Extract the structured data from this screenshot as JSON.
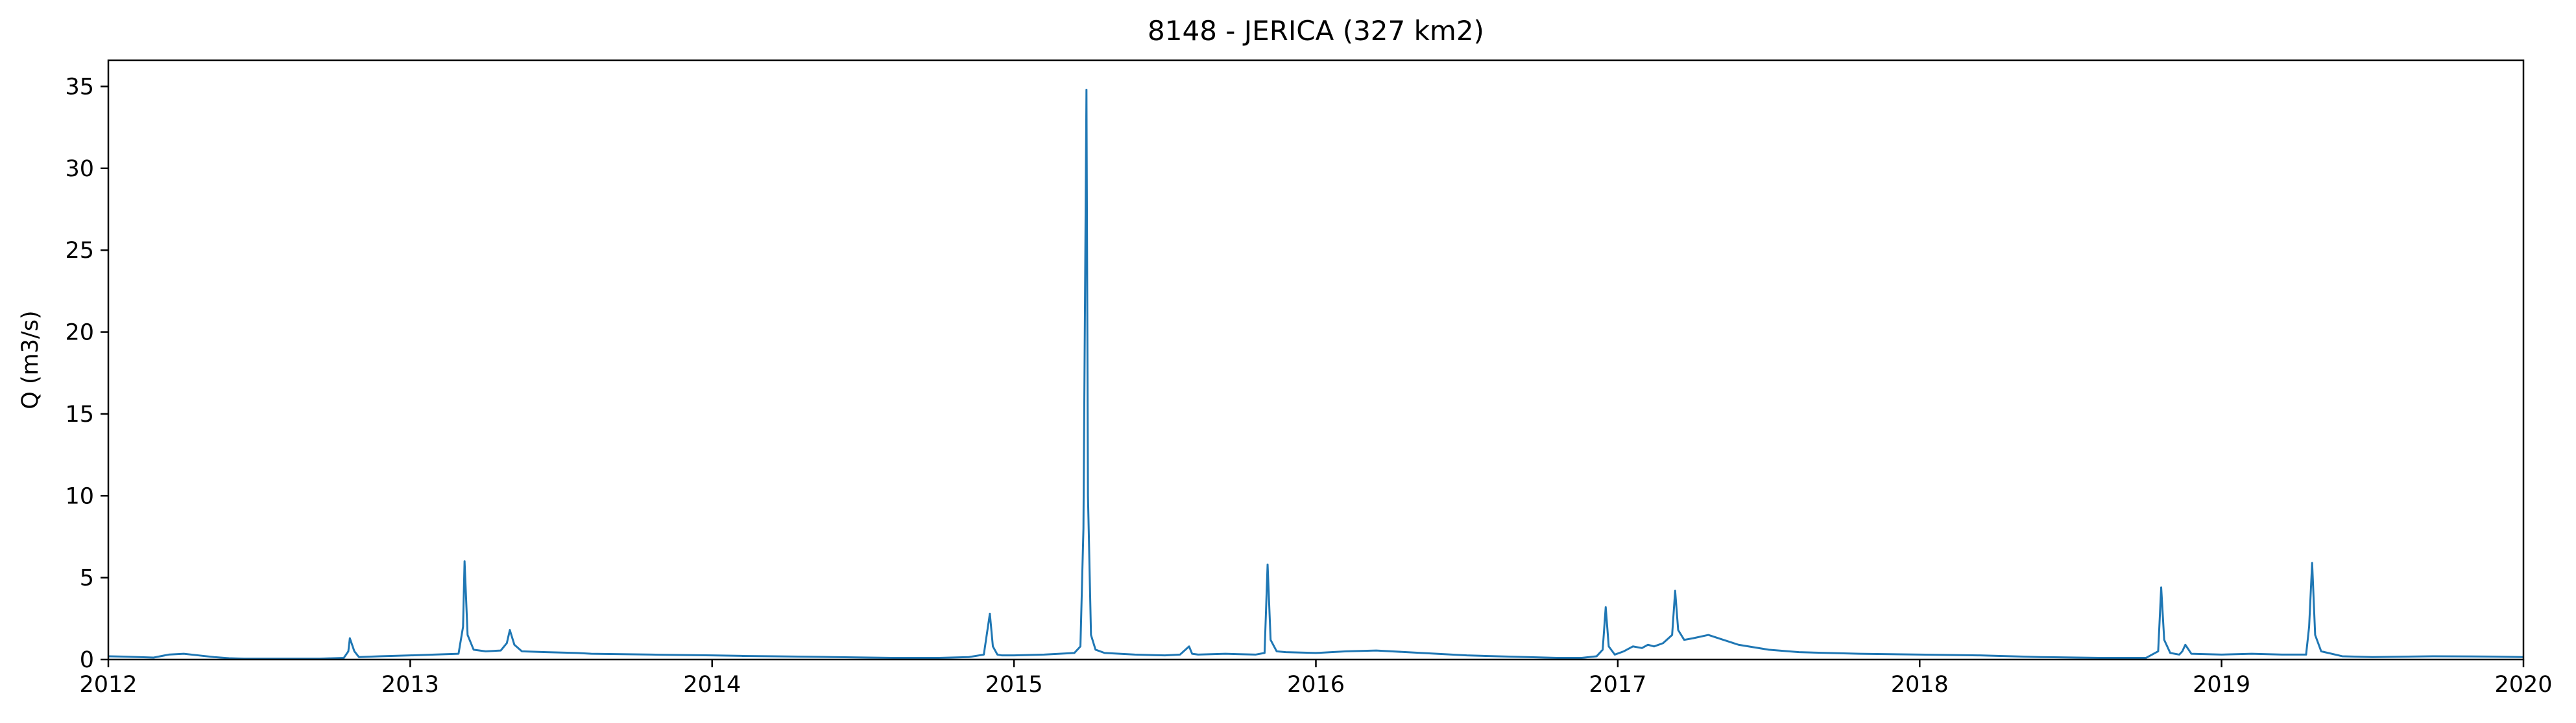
{
  "chart_data": {
    "type": "line",
    "title": "8148 - JERICA (327 km2)",
    "xlabel": "",
    "ylabel": "Q (m3/s)",
    "xlim": [
      2012.0,
      2020.0
    ],
    "ylim": [
      0,
      36.6
    ],
    "x_ticks": [
      2012,
      2013,
      2014,
      2015,
      2016,
      2017,
      2018,
      2019,
      2020
    ],
    "x_tick_labels": [
      "2012",
      "2013",
      "2014",
      "2015",
      "2016",
      "2017",
      "2018",
      "2019",
      "2020"
    ],
    "y_ticks": [
      0,
      5,
      10,
      15,
      20,
      25,
      30,
      35
    ],
    "y_tick_labels": [
      "0",
      "5",
      "10",
      "15",
      "20",
      "25",
      "30",
      "35"
    ],
    "grid": false,
    "legend": "none",
    "line_color": "#1f77b4",
    "series": [
      {
        "x": [
          2012.0,
          2012.05,
          2012.1,
          2012.15,
          2012.2,
          2012.25,
          2012.3,
          2012.35,
          2012.4,
          2012.45,
          2012.5,
          2012.6,
          2012.7,
          2012.78,
          2012.795,
          2012.8,
          2012.815,
          2012.83,
          2012.9,
          2013.0,
          2013.08,
          2013.16,
          2013.175,
          2013.18,
          2013.19,
          2013.21,
          2013.25,
          2013.3,
          2013.32,
          2013.33,
          2013.345,
          2013.37,
          2013.45,
          2013.55,
          2013.6,
          2013.8,
          2014.0,
          2014.1,
          2014.2,
          2014.4,
          2014.6,
          2014.75,
          2014.85,
          2014.9,
          2014.92,
          2014.93,
          2014.945,
          2014.96,
          2015.0,
          2015.1,
          2015.2,
          2015.22,
          2015.23,
          2015.24,
          2015.245,
          2015.255,
          2015.27,
          2015.3,
          2015.35,
          2015.4,
          2015.5,
          2015.55,
          2015.58,
          2015.59,
          2015.61,
          2015.7,
          2015.8,
          2015.83,
          2015.84,
          2015.85,
          2015.87,
          2015.9,
          2016.0,
          2016.1,
          2016.2,
          2016.3,
          2016.4,
          2016.5,
          2016.6,
          2016.7,
          2016.8,
          2016.88,
          2016.93,
          2016.95,
          2016.96,
          2016.97,
          2016.99,
          2017.02,
          2017.05,
          2017.08,
          2017.1,
          2017.12,
          2017.15,
          2017.18,
          2017.19,
          2017.2,
          2017.22,
          2017.25,
          2017.3,
          2017.35,
          2017.4,
          2017.5,
          2017.6,
          2017.8,
          2018.0,
          2018.2,
          2018.4,
          2018.6,
          2018.75,
          2018.79,
          2018.8,
          2018.81,
          2018.83,
          2018.86,
          2018.87,
          2018.88,
          2018.9,
          2019.0,
          2019.1,
          2019.2,
          2019.28,
          2019.29,
          2019.3,
          2019.31,
          2019.33,
          2019.4,
          2019.5,
          2019.7,
          2019.9,
          2020.0
        ],
        "y": [
          0.2,
          0.18,
          0.15,
          0.12,
          0.3,
          0.35,
          0.25,
          0.15,
          0.08,
          0.05,
          0.05,
          0.05,
          0.05,
          0.1,
          0.5,
          1.3,
          0.5,
          0.15,
          0.2,
          0.25,
          0.3,
          0.35,
          2.0,
          6.0,
          1.5,
          0.6,
          0.5,
          0.55,
          1.0,
          1.8,
          0.9,
          0.5,
          0.45,
          0.4,
          0.35,
          0.3,
          0.25,
          0.22,
          0.2,
          0.15,
          0.1,
          0.1,
          0.15,
          0.3,
          2.8,
          0.8,
          0.3,
          0.25,
          0.25,
          0.3,
          0.4,
          0.8,
          8.0,
          34.8,
          10.0,
          1.5,
          0.6,
          0.4,
          0.35,
          0.3,
          0.25,
          0.3,
          0.8,
          0.35,
          0.3,
          0.35,
          0.3,
          0.4,
          5.8,
          1.2,
          0.5,
          0.45,
          0.4,
          0.5,
          0.55,
          0.45,
          0.35,
          0.25,
          0.2,
          0.15,
          0.1,
          0.1,
          0.2,
          0.6,
          3.2,
          0.8,
          0.3,
          0.5,
          0.8,
          0.7,
          0.9,
          0.8,
          1.0,
          1.5,
          4.2,
          1.8,
          1.2,
          1.3,
          1.5,
          1.2,
          0.9,
          0.6,
          0.45,
          0.35,
          0.3,
          0.25,
          0.15,
          0.1,
          0.1,
          0.5,
          4.4,
          1.2,
          0.4,
          0.3,
          0.5,
          0.9,
          0.35,
          0.3,
          0.35,
          0.3,
          0.3,
          2.0,
          5.9,
          1.5,
          0.5,
          0.2,
          0.15,
          0.2,
          0.18,
          0.15
        ]
      }
    ]
  }
}
